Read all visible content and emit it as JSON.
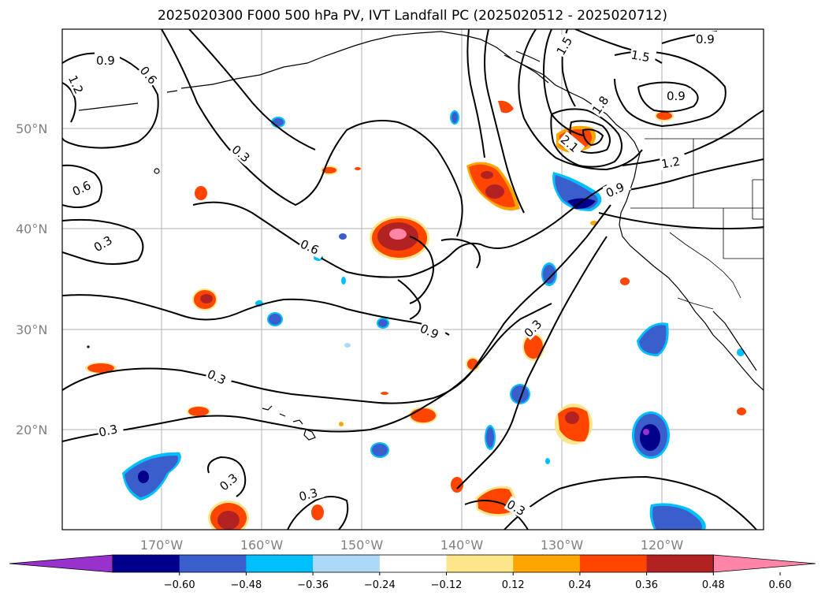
{
  "title": "2025020300 F000 500 hPa PV, IVT Landfall PC (2025020512 - 2025020712)",
  "lat_labels": [
    "50°N",
    "40°N",
    "30°N",
    "20°N"
  ],
  "lon_labels": [
    "170°W",
    "160°W",
    "150°W",
    "140°W",
    "130°W",
    "120°W"
  ],
  "contour_labels": [
    "0.9",
    "0.6",
    "1.2",
    "0.3",
    "0.6",
    "0.3",
    "0.6",
    "0.3",
    "0.9",
    "0.3",
    "0.3",
    "0.3",
    "0.3",
    "0.3",
    "1.5",
    "1.5",
    "0.9",
    "0.9",
    "1.8",
    "2.1",
    "1.2",
    "0.9"
  ],
  "colorbar": {
    "ticks": [
      "−0.60",
      "−0.48",
      "−0.36",
      "−0.24",
      "−0.12",
      "0.12",
      "0.24",
      "0.36",
      "0.48",
      "0.60"
    ],
    "colors": [
      "#9932cc",
      "#00008b",
      "#3a5fcd",
      "#00bfff",
      "#add8f7",
      "#ffffff",
      "#fde68a",
      "#ffa500",
      "#ff4500",
      "#b22222",
      "#ff85a8"
    ]
  },
  "palette": {
    "neg_strong": "#00008b",
    "neg_mid": "#3a5fcd",
    "neg_light": "#00bfff",
    "neg_pale": "#add8f7",
    "pos_pale": "#fde68a",
    "pos_light": "#ffa500",
    "pos_mid": "#ff4500",
    "pos_strong": "#b22222",
    "pos_max": "#ff85a8"
  }
}
